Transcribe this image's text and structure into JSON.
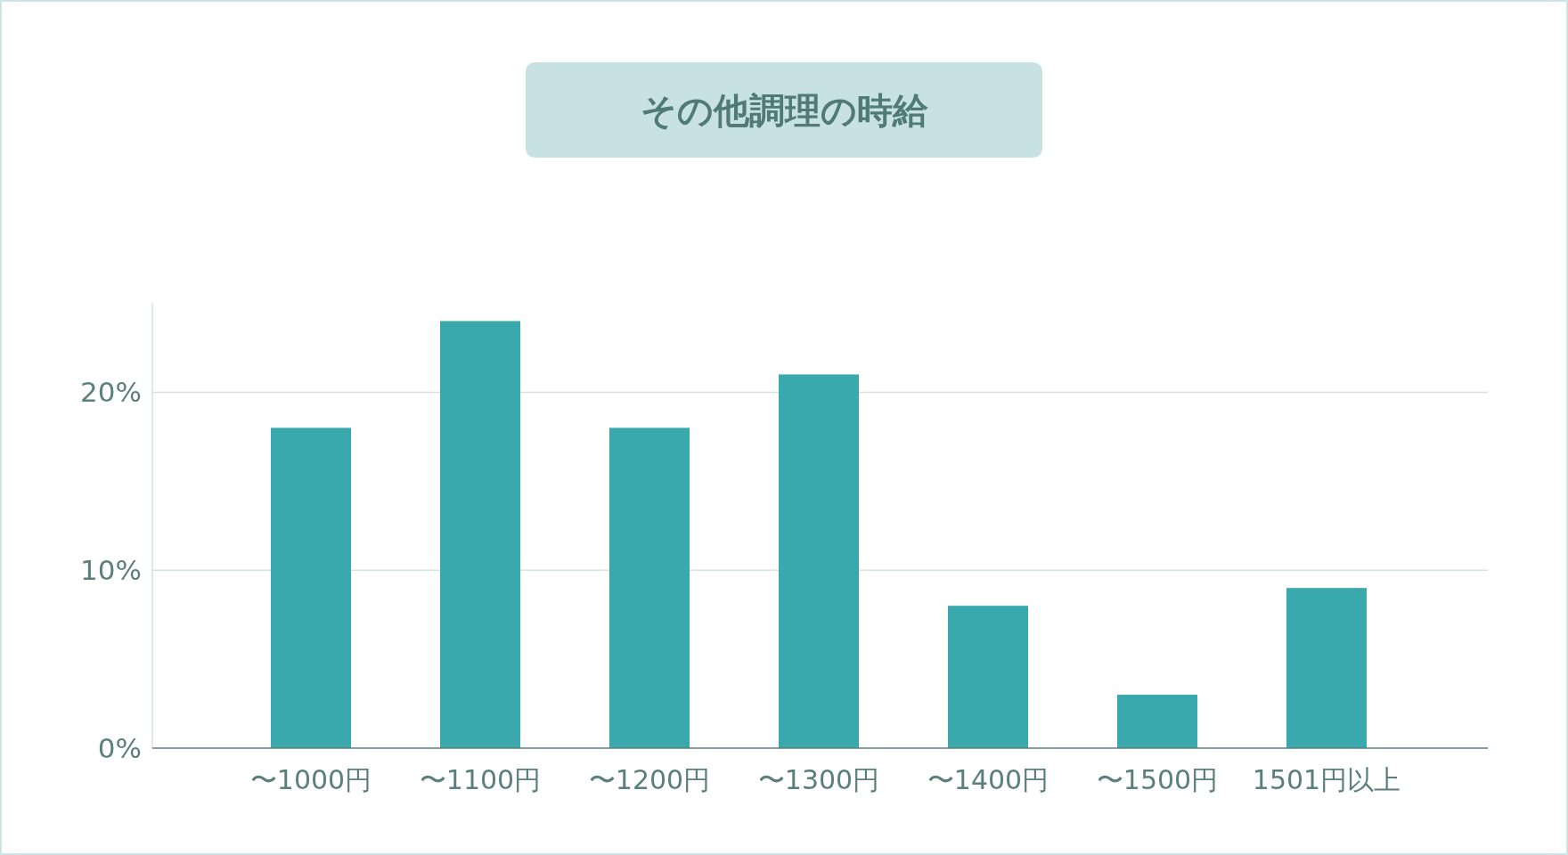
{
  "chart_data": {
    "type": "bar",
    "title": "その他調理の時給",
    "categories": [
      "〜1000円",
      "〜1100円",
      "〜1200円",
      "〜1300円",
      "〜1400円",
      "〜1500円",
      "1501円以上"
    ],
    "values": [
      18,
      24,
      18,
      21,
      8,
      3,
      9
    ],
    "color": "#3aa9ad",
    "ylim": [
      0,
      25
    ],
    "yticks": [
      {
        "value": 0,
        "label": "0%"
      },
      {
        "value": 10,
        "label": "10%"
      },
      {
        "value": 20,
        "label": "20%"
      }
    ],
    "grid": "y"
  }
}
